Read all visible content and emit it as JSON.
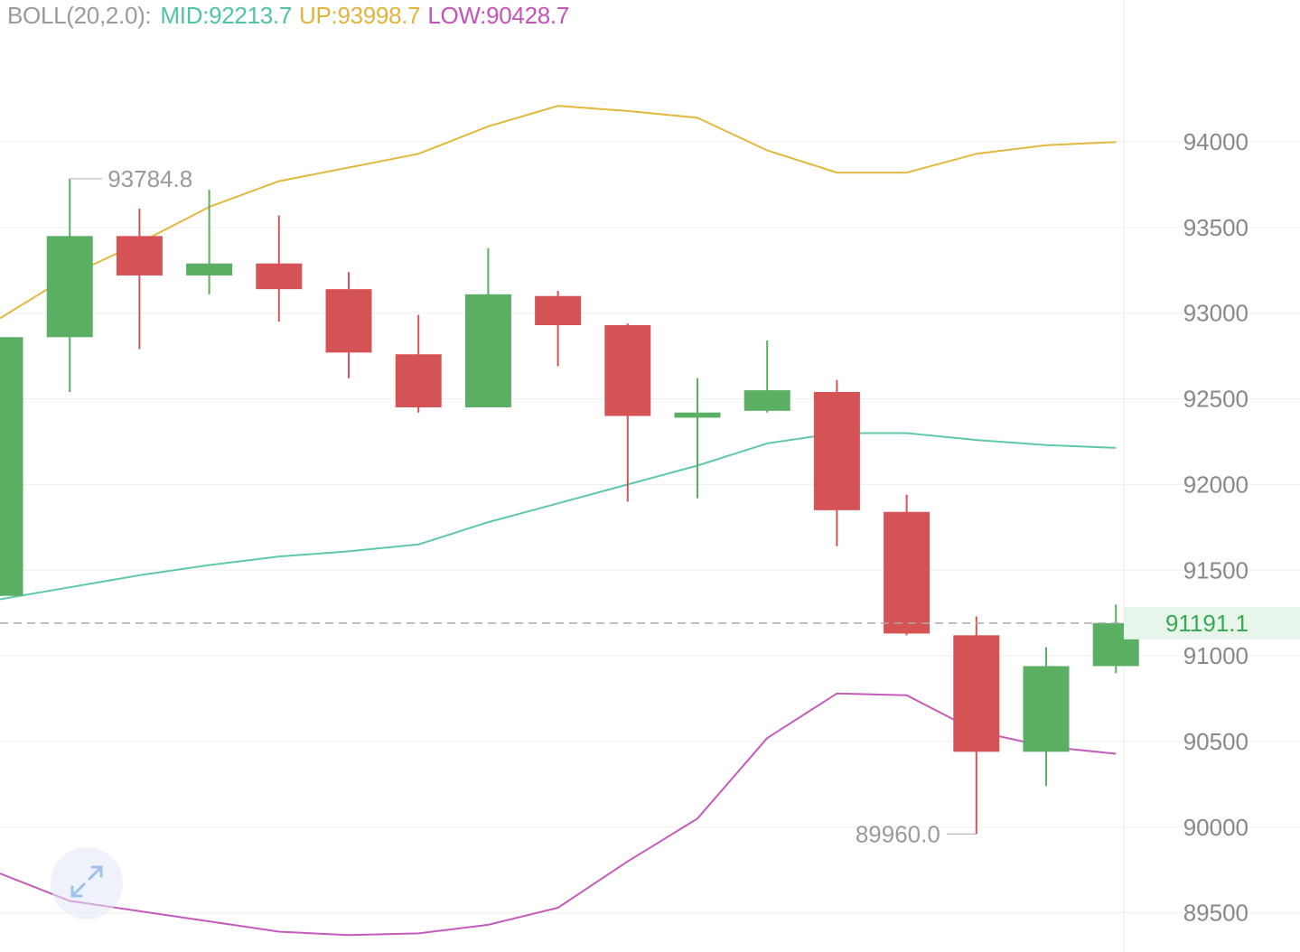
{
  "indicator": {
    "label": "BOLL(20,2.0):",
    "mid": "MID:92213.7",
    "up": "UP:93998.7",
    "low": "LOW:90428.7"
  },
  "colors": {
    "up_candle": "#5aaf62",
    "down_candle": "#d65355",
    "mid_line": "#5ec7ae",
    "upper_line": "#e2b83c",
    "lower_line": "#c45bbc",
    "grid": "#efefef",
    "axis_text": "#888888",
    "current_price": "#3aa955",
    "current_price_bg": "#e8f5ea",
    "annotation_text": "#9a9a9a"
  },
  "chart_data": {
    "type": "candlestick",
    "y_axis": {
      "ticks": [
        94000,
        93500,
        93000,
        92500,
        92000,
        91500,
        91000,
        90500,
        90000,
        89500
      ],
      "tick_labels": [
        "94000",
        "93500",
        "93000",
        "92500",
        "92000",
        "91500",
        "91000",
        "90500",
        "90000",
        "89500"
      ],
      "position": "right",
      "grid": true
    },
    "candles": [
      {
        "open": 91350,
        "high": 92860,
        "low": 91350,
        "close": 92860
      },
      {
        "open": 92860,
        "high": 93784.8,
        "low": 92540,
        "close": 93450
      },
      {
        "open": 93450,
        "high": 93610,
        "low": 92790,
        "close": 93220
      },
      {
        "open": 93220,
        "high": 93720,
        "low": 93110,
        "close": 93290
      },
      {
        "open": 93290,
        "high": 93570,
        "low": 92950,
        "close": 93140
      },
      {
        "open": 93140,
        "high": 93240,
        "low": 92620,
        "close": 92770
      },
      {
        "open": 92760,
        "high": 92990,
        "low": 92420,
        "close": 92450
      },
      {
        "open": 92450,
        "high": 93380,
        "low": 92450,
        "close": 93110
      },
      {
        "open": 93100,
        "high": 93130,
        "low": 92690,
        "close": 92930
      },
      {
        "open": 92930,
        "high": 92940,
        "low": 91900,
        "close": 92400
      },
      {
        "open": 92390,
        "high": 92620,
        "low": 91920,
        "close": 92420
      },
      {
        "open": 92430,
        "high": 92840,
        "low": 92420,
        "close": 92550
      },
      {
        "open": 92540,
        "high": 92610,
        "low": 91640,
        "close": 91850
      },
      {
        "open": 91840,
        "high": 91940,
        "low": 91120,
        "close": 91130
      },
      {
        "open": 91120,
        "high": 91230,
        "low": 89960.0,
        "close": 90440
      },
      {
        "open": 90440,
        "high": 91050,
        "low": 90240,
        "close": 90940
      },
      {
        "open": 90940,
        "high": 91300,
        "low": 90900,
        "close": 91191.1
      }
    ],
    "boll_mid": [
      91330,
      91400,
      91470,
      91530,
      91580,
      91610,
      91650,
      91780,
      91890,
      92000,
      92110,
      92240,
      92300,
      92300,
      92260,
      92230,
      92213.7
    ],
    "boll_upper": [
      92970,
      93220,
      93410,
      93620,
      93770,
      93850,
      93930,
      94090,
      94210,
      94180,
      94140,
      93950,
      93820,
      93820,
      93930,
      93980,
      93998.7
    ],
    "boll_lower": [
      89730,
      89570,
      89510,
      89450,
      89390,
      89370,
      89380,
      89430,
      89530,
      89800,
      90050,
      90520,
      90780,
      90770,
      90560,
      90470,
      90428.7
    ],
    "annotations": {
      "high": {
        "value": 93784.8,
        "text": "93784.8"
      },
      "low": {
        "value": 89960.0,
        "text": "89960.0"
      }
    },
    "current_price": {
      "value": 91191.1,
      "label": "91191.1"
    }
  }
}
